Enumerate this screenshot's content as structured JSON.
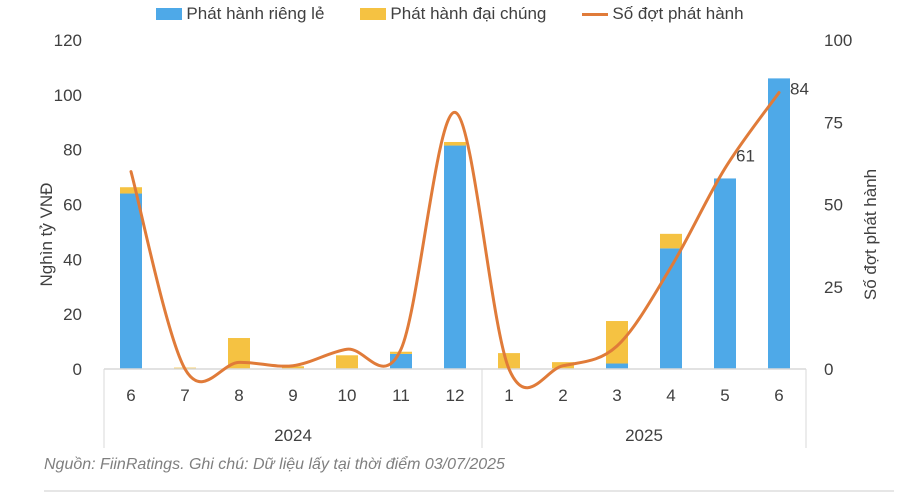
{
  "chart_data": {
    "type": "bar",
    "subtype": "stacked bar + line (dual axis)",
    "title": "",
    "categories": [
      "6",
      "7",
      "8",
      "9",
      "10",
      "11",
      "12",
      "1",
      "2",
      "3",
      "4",
      "5",
      "6"
    ],
    "category_groups": [
      {
        "label": "2024",
        "months": [
          "6",
          "7",
          "8",
          "9",
          "10",
          "11",
          "12"
        ]
      },
      {
        "label": "2025",
        "months": [
          "1",
          "2",
          "3",
          "4",
          "5",
          "6"
        ]
      }
    ],
    "series": [
      {
        "name": "Phát hành riêng lẻ",
        "type": "bar",
        "axis": "left",
        "color": "#4EA9E8",
        "values": [
          64,
          0,
          0,
          0,
          0,
          5.5,
          81.5,
          0,
          0,
          2,
          44,
          69.5,
          106
        ]
      },
      {
        "name": "Phát hành đại chúng",
        "type": "bar",
        "axis": "left",
        "color": "#F5C242",
        "values": [
          2.3,
          0.5,
          11.3,
          1,
          5,
          0.8,
          1.3,
          5.8,
          2.5,
          15.5,
          5.3,
          0,
          0
        ]
      },
      {
        "name": "Số đợt phát hành",
        "type": "line",
        "axis": "right",
        "color": "#E07B39",
        "values": [
          60,
          0,
          2,
          1,
          6,
          6,
          78,
          0,
          1,
          7,
          31,
          61,
          84
        ],
        "data_labels": {
          "11": "61",
          "12": "84"
        }
      }
    ],
    "ylabel": "Nghìn tỷ VNĐ",
    "ylim": [
      0,
      120
    ],
    "yticks": [
      0,
      20,
      40,
      60,
      80,
      100,
      120
    ],
    "y2label": "Số đợt phát hành",
    "y2lim": [
      0,
      100
    ],
    "y2ticks": [
      0,
      25,
      50,
      75,
      100
    ],
    "legend_position": "top",
    "grid": false
  },
  "legend": {
    "items": [
      {
        "label": "Phát hành riêng lẻ",
        "color": "#4EA9E8",
        "kind": "box"
      },
      {
        "label": "Phát hành đại chúng",
        "color": "#F5C242",
        "kind": "box"
      },
      {
        "label": "Số đợt phát hành",
        "color": "#E07B39",
        "kind": "line"
      }
    ]
  },
  "footnote": "Nguồn: FiinRatings. Ghi chú: Dữ liệu lấy tại thời điểm 03/07/2025"
}
